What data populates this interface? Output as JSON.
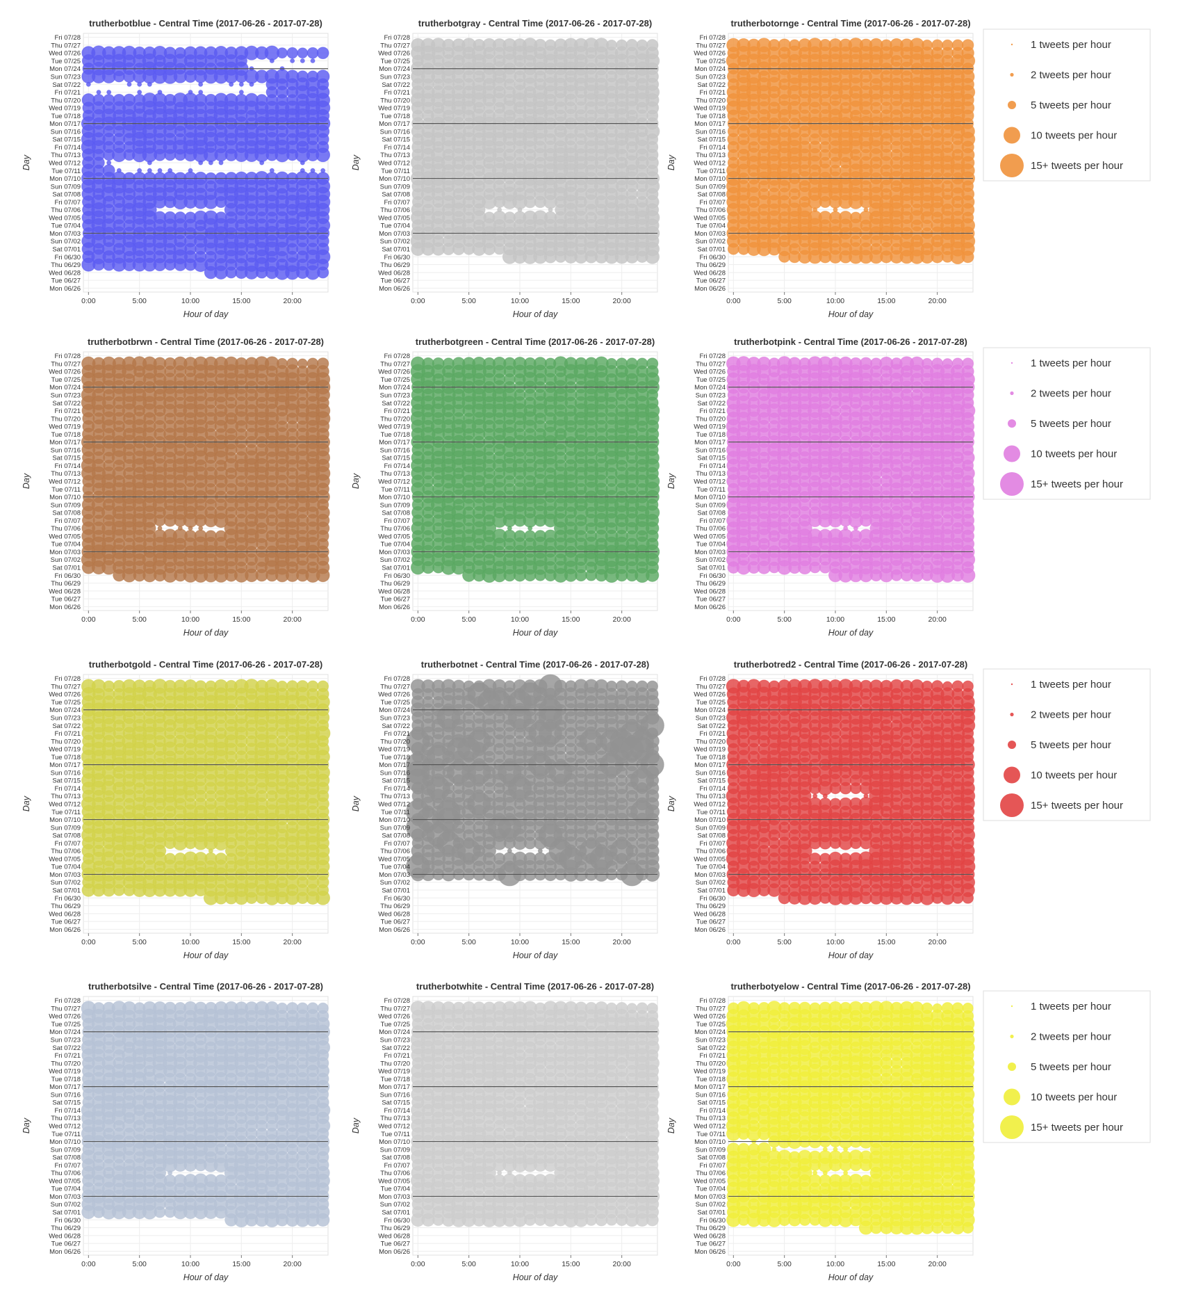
{
  "panel_common": {
    "xlabel": "Hour of day",
    "ylabel": "Day",
    "x_ticks": [
      0,
      5,
      10,
      15,
      20
    ],
    "x_tick_labels": [
      "0:00",
      "5:00",
      "10:00",
      "15:00",
      "20:00"
    ],
    "xlim": [
      -0.5,
      23.5
    ],
    "day_labels": [
      "Fri 07/28",
      "Thu 07/27",
      "Wed 07/26",
      "Tue 07/25",
      "Mon 07/24",
      "Sun 07/23",
      "Sat 07/22",
      "Fri 07/21",
      "Thu 07/20",
      "Wed 07/19",
      "Tue 07/18",
      "Mon 07/17",
      "Sun 07/16",
      "Sat 07/15",
      "Fri 07/14",
      "Thu 07/13",
      "Wed 07/12",
      "Tue 07/11",
      "Mon 07/10",
      "Sun 07/09",
      "Sat 07/08",
      "Fri 07/07",
      "Thu 07/06",
      "Wed 07/05",
      "Tue 07/04",
      "Mon 07/03",
      "Sun 07/02",
      "Sat 07/01",
      "Fri 06/30",
      "Thu 06/29",
      "Wed 06/28",
      "Tue 06/27",
      "Mon 06/26"
    ],
    "week_lines": [
      "Mon 07/24",
      "Mon 07/17",
      "Mon 07/10",
      "Mon 07/03"
    ],
    "grid": true
  },
  "legend_common": {
    "entries": [
      "1 tweets per hour",
      "2 tweets per hour",
      "5 tweets per hour",
      "10 tweets per hour",
      "15+ tweets per hour"
    ],
    "values": [
      1,
      2,
      5,
      10,
      15
    ]
  },
  "colors": {
    "blue": "#5b5bf2",
    "gray": "#c4c4c4",
    "orange": "#f0923c",
    "brown": "#b5784a",
    "green": "#5aa862",
    "pink": "#e07ee0",
    "gold": "#d2d24a",
    "net": "#939393",
    "red": "#e24444",
    "silver": "#b6c2d6",
    "white": "#cdcdcd",
    "yellow": "#f0ee3a"
  },
  "chart_data": [
    {
      "type": "scatter",
      "title": "trutherbotblue - Central Time (2017-06-26 - 2017-07-28)",
      "color": "blue",
      "first_day": "Wed 06/28",
      "first_hour": 12,
      "last_day": "Wed 07/26",
      "last_hour": 23,
      "first_day_full": "Fri 06/30",
      "typical_tweets_per_hour": 10,
      "gaps": [
        {
          "day": "Fri 07/21",
          "from": 0,
          "to": 17
        },
        {
          "day": "Sat 07/22",
          "from": 0,
          "to": 17
        },
        {
          "day": "Mon 07/24",
          "from": 16,
          "to": 23
        },
        {
          "day": "Tue 07/25",
          "from": 16,
          "to": 23
        },
        {
          "day": "Thu 07/06",
          "from": 7,
          "to": 13
        },
        {
          "day": "Wed 07/12",
          "from": 2,
          "to": 23
        },
        {
          "day": "Tue 07/11",
          "from": 3,
          "to": 23
        }
      ]
    },
    {
      "type": "scatter",
      "title": "trutherbotgray - Central Time (2017-06-26 - 2017-07-28)",
      "color": "gray",
      "first_day": "Fri 06/30",
      "first_hour": 9,
      "last_day": "Thu 07/27",
      "last_hour": 23,
      "typical_tweets_per_hour": 10,
      "gaps": [
        {
          "day": "Thu 07/06",
          "from": 7,
          "to": 13
        }
      ]
    },
    {
      "type": "scatter",
      "title": "trutherbotornge - Central Time (2017-06-26 - 2017-07-28)",
      "color": "orange",
      "first_day": "Fri 06/30",
      "first_hour": 5,
      "last_day": "Thu 07/27",
      "last_hour": 23,
      "typical_tweets_per_hour": 10,
      "gaps": [
        {
          "day": "Thu 07/06",
          "from": 8,
          "to": 13
        }
      ]
    },
    {
      "type": "scatter",
      "title": "trutherbotbrwn - Central Time (2017-06-26 - 2017-07-28)",
      "color": "brown",
      "first_day": "Fri 06/30",
      "first_hour": 3,
      "last_day": "Thu 07/27",
      "last_hour": 23,
      "typical_tweets_per_hour": 10,
      "gaps": [
        {
          "day": "Thu 07/06",
          "from": 7,
          "to": 13
        }
      ]
    },
    {
      "type": "scatter",
      "title": "trutherbotgreen - Central Time (2017-06-26 - 2017-07-28)",
      "color": "green",
      "first_day": "Fri 06/30",
      "first_hour": 5,
      "last_day": "Thu 07/27",
      "last_hour": 23,
      "typical_tweets_per_hour": 10,
      "gaps": [
        {
          "day": "Thu 07/06",
          "from": 8,
          "to": 13
        }
      ]
    },
    {
      "type": "scatter",
      "title": "trutherbotpink - Central Time (2017-06-26 - 2017-07-28)",
      "color": "pink",
      "first_day": "Fri 06/30",
      "first_hour": 10,
      "last_day": "Thu 07/27",
      "last_hour": 23,
      "typical_tweets_per_hour": 10,
      "gaps": [
        {
          "day": "Thu 07/06",
          "from": 8,
          "to": 13
        }
      ]
    },
    {
      "type": "scatter",
      "title": "trutherbotgold - Central Time (2017-06-26 - 2017-07-28)",
      "color": "gold",
      "first_day": "Fri 06/30",
      "first_hour": 12,
      "last_day": "Thu 07/27",
      "last_hour": 23,
      "typical_tweets_per_hour": 10,
      "gaps": [
        {
          "day": "Thu 07/06",
          "from": 8,
          "to": 13
        }
      ]
    },
    {
      "type": "scatter",
      "title": "trutherbotnet - Central Time (2017-06-26 - 2017-07-28)",
      "color": "net",
      "first_day": "Mon 07/03",
      "first_hour": 0,
      "last_day": "Thu 07/27",
      "last_hour": 23,
      "typical_tweets_per_hour": 10,
      "gaps": [
        {
          "day": "Thu 07/06",
          "from": 8,
          "to": 13
        }
      ]
    },
    {
      "type": "scatter",
      "title": "trutherbotred2 - Central Time (2017-06-26 - 2017-07-28)",
      "color": "red",
      "first_day": "Fri 06/30",
      "first_hour": 5,
      "last_day": "Thu 07/27",
      "last_hour": 23,
      "typical_tweets_per_hour": 10,
      "gaps": [
        {
          "day": "Thu 07/06",
          "from": 8,
          "to": 13
        },
        {
          "day": "Thu 07/13",
          "from": 8,
          "to": 13
        }
      ]
    },
    {
      "type": "scatter",
      "title": "trutherbotsilve - Central Time (2017-06-26 - 2017-07-28)",
      "color": "silver",
      "first_day": "Fri 06/30",
      "first_hour": 14,
      "last_day": "Thu 07/27",
      "last_hour": 23,
      "typical_tweets_per_hour": 10,
      "gaps": [
        {
          "day": "Thu 07/06",
          "from": 8,
          "to": 13
        }
      ]
    },
    {
      "type": "scatter",
      "title": "trutherbotwhite - Central Time (2017-06-26 - 2017-07-28)",
      "color": "white",
      "first_day": "Fri 06/30",
      "first_hour": 0,
      "last_day": "Thu 07/27",
      "last_hour": 23,
      "typical_tweets_per_hour": 10,
      "gaps": [
        {
          "day": "Thu 07/06",
          "from": 8,
          "to": 13
        }
      ]
    },
    {
      "type": "scatter",
      "title": "trutherbotyelow - Central Time (2017-06-26 - 2017-07-28)",
      "color": "yellow",
      "first_day": "Thu 06/29",
      "first_hour": 13,
      "last_day": "Thu 07/27",
      "last_hour": 23,
      "typical_tweets_per_hour": 10,
      "gaps": [
        {
          "day": "Thu 07/06",
          "from": 8,
          "to": 13
        },
        {
          "day": "Mon 07/10",
          "from": 0,
          "to": 3
        },
        {
          "day": "Sun 07/09",
          "from": 4,
          "to": 13
        }
      ]
    }
  ]
}
